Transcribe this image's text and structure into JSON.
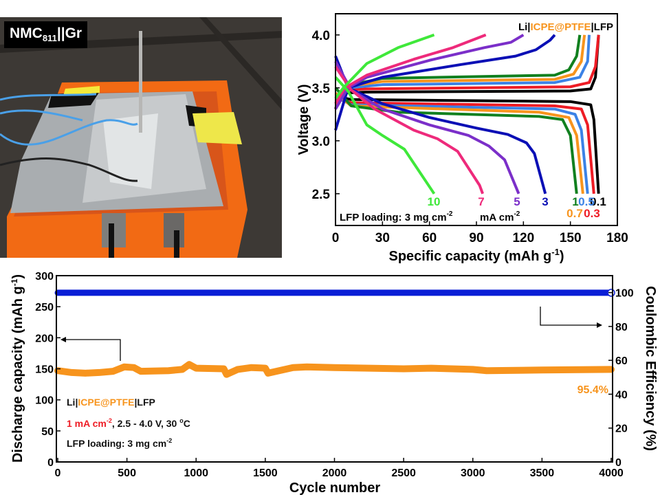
{
  "photo": {
    "label_main": "NMC",
    "label_sub": "811",
    "label_tail": "||Gr"
  },
  "chart_data": [
    {
      "type": "line",
      "xlabel": {
        "text": "Specific capacity (mAh g",
        "sup": "-1",
        "tail": ")"
      },
      "ylabel": "Voltage (V)",
      "xlim": [
        0,
        180
      ],
      "ylim": [
        2.2,
        4.2
      ],
      "xticks": [
        0,
        30,
        60,
        90,
        120,
        150,
        180
      ],
      "yticks": [
        "2.5",
        "3.0",
        "3.5",
        "4.0"
      ],
      "legend_title": {
        "a": "Li|",
        "b": "ICPE@PTFE",
        "c": "|LFP",
        "b_color": "#f7941d"
      },
      "annotation_loading": {
        "text": "LFP loading: 3 mg cm",
        "sup": "-2"
      },
      "annotation_unit": {
        "text": "mA cm",
        "sup": "-2"
      },
      "grid": false,
      "series": [
        {
          "name": "0.1",
          "color": "#000000",
          "charge": [
            [
              0,
              3.3
            ],
            [
              3,
              3.45
            ],
            [
              20,
              3.46
            ],
            [
              150,
              3.47
            ],
            [
              163,
              3.49
            ],
            [
              166,
              3.6
            ],
            [
              168,
              4.0
            ]
          ],
          "discharge": [
            [
              0,
              3.42
            ],
            [
              10,
              3.39
            ],
            [
              150,
              3.37
            ],
            [
              163,
              3.34
            ],
            [
              165,
              3.2
            ],
            [
              168,
              2.5
            ]
          ]
        },
        {
          "name": "0.3",
          "color": "#ee1c25",
          "charge": [
            [
              0,
              3.3
            ],
            [
              5,
              3.48
            ],
            [
              20,
              3.49
            ],
            [
              150,
              3.51
            ],
            [
              162,
              3.55
            ],
            [
              166,
              3.7
            ],
            [
              168,
              4.0
            ]
          ],
          "discharge": [
            [
              0,
              3.4
            ],
            [
              10,
              3.36
            ],
            [
              140,
              3.33
            ],
            [
              157,
              3.3
            ],
            [
              161,
              3.15
            ],
            [
              165,
              2.5
            ]
          ]
        },
        {
          "name": "0.5",
          "color": "#3b82e6",
          "charge": [
            [
              0,
              3.3
            ],
            [
              8,
              3.5
            ],
            [
              30,
              3.53
            ],
            [
              140,
              3.55
            ],
            [
              156,
              3.6
            ],
            [
              161,
              3.75
            ],
            [
              162,
              4.0
            ]
          ],
          "discharge": [
            [
              0,
              3.42
            ],
            [
              10,
              3.34
            ],
            [
              140,
              3.3
            ],
            [
              153,
              3.25
            ],
            [
              157,
              3.1
            ],
            [
              161,
              2.5
            ]
          ]
        },
        {
          "name": "0.7",
          "color": "#f7941d",
          "charge": [
            [
              0,
              3.35
            ],
            [
              10,
              3.52
            ],
            [
              30,
              3.56
            ],
            [
              140,
              3.58
            ],
            [
              152,
              3.63
            ],
            [
              157,
              3.75
            ],
            [
              159,
              4.0
            ]
          ],
          "discharge": [
            [
              0,
              3.45
            ],
            [
              10,
              3.33
            ],
            [
              130,
              3.27
            ],
            [
              149,
              3.22
            ],
            [
              154,
              3.05
            ],
            [
              158,
              2.5
            ]
          ]
        },
        {
          "name": "1",
          "color": "#11801f",
          "charge": [
            [
              0,
              3.4
            ],
            [
              10,
              3.53
            ],
            [
              30,
              3.59
            ],
            [
              140,
              3.62
            ],
            [
              149,
              3.67
            ],
            [
              154,
              3.8
            ],
            [
              156,
              4.0
            ]
          ],
          "discharge": [
            [
              0,
              3.5
            ],
            [
              10,
              3.33
            ],
            [
              40,
              3.27
            ],
            [
              130,
              3.23
            ],
            [
              145,
              3.2
            ],
            [
              150,
              3.05
            ],
            [
              154,
              2.5
            ]
          ]
        },
        {
          "name": "3",
          "color": "#0a0fb5",
          "charge": [
            [
              0,
              3.1
            ],
            [
              8,
              3.5
            ],
            [
              30,
              3.6
            ],
            [
              80,
              3.72
            ],
            [
              115,
              3.8
            ],
            [
              128,
              3.86
            ],
            [
              137,
              3.95
            ],
            [
              140,
              4.0
            ]
          ],
          "discharge": [
            [
              0,
              3.8
            ],
            [
              8,
              3.5
            ],
            [
              30,
              3.35
            ],
            [
              60,
              3.22
            ],
            [
              90,
              3.12
            ],
            [
              110,
              3.06
            ],
            [
              122,
              2.98
            ],
            [
              127,
              2.88
            ],
            [
              134,
              2.5
            ]
          ]
        },
        {
          "name": "5",
          "color": "#7b2fc9",
          "charge": [
            [
              0,
              3.3
            ],
            [
              8,
              3.5
            ],
            [
              20,
              3.6
            ],
            [
              60,
              3.76
            ],
            [
              95,
              3.88
            ],
            [
              112,
              3.93
            ],
            [
              120,
              4.0
            ]
          ],
          "discharge": [
            [
              0,
              3.75
            ],
            [
              10,
              3.48
            ],
            [
              30,
              3.3
            ],
            [
              60,
              3.15
            ],
            [
              85,
              3.05
            ],
            [
              98,
              2.95
            ],
            [
              108,
              2.82
            ],
            [
              117,
              2.5
            ]
          ]
        },
        {
          "name": "7",
          "color": "#ee2a7b",
          "charge": [
            [
              0,
              3.35
            ],
            [
              6,
              3.5
            ],
            [
              20,
              3.62
            ],
            [
              50,
              3.77
            ],
            [
              75,
              3.88
            ],
            [
              96,
              4.0
            ]
          ],
          "discharge": [
            [
              0,
              3.7
            ],
            [
              10,
              3.48
            ],
            [
              25,
              3.3
            ],
            [
              50,
              3.1
            ],
            [
              65,
              3.02
            ],
            [
              78,
              2.9
            ],
            [
              92,
              2.58
            ],
            [
              94,
              2.5
            ]
          ]
        },
        {
          "name": "10",
          "color": "#3fe83a",
          "charge": [
            [
              0,
              3.4
            ],
            [
              5,
              3.5
            ],
            [
              20,
              3.73
            ],
            [
              40,
              3.88
            ],
            [
              63,
              4.0
            ]
          ],
          "discharge": [
            [
              0,
              3.6
            ],
            [
              8,
              3.47
            ],
            [
              20,
              3.15
            ],
            [
              30,
              3.05
            ],
            [
              44,
              2.92
            ],
            [
              63,
              2.5
            ]
          ]
        }
      ]
    },
    {
      "type": "line",
      "xlabel": "Cycle number",
      "ylabel": {
        "text": "Discharge capacity (mAh g",
        "sup": "-1",
        "tail": ")"
      },
      "ylabel_right": "Coulombic Efficiency (%)",
      "xlim": [
        0,
        4000
      ],
      "ylim": [
        0,
        300
      ],
      "ylim_right": [
        0,
        110
      ],
      "xticks": [
        0,
        500,
        1000,
        1500,
        2000,
        2500,
        3000,
        3500,
        4000
      ],
      "yticks": [
        0,
        50,
        100,
        150,
        200,
        250,
        300
      ],
      "yticks_right": [
        0,
        20,
        40,
        60,
        80,
        100
      ],
      "grid": false,
      "annotation_cell": {
        "a": "Li|",
        "b": "ICPE@PTFE",
        "c": "|LFP"
      },
      "annotation_rate": {
        "a": "1 mA cm",
        "a_sup": "-2",
        "b": ", 2.5 - 4.0 V, 30 ",
        "b_sup": "o",
        "c": "C"
      },
      "annotation_loading": {
        "text": "LFP loading: 3 mg cm",
        "sup": "-2"
      },
      "retention_label": "95.4%",
      "series": [
        {
          "axis": "left",
          "color": "#f7941d",
          "x": [
            0,
            100,
            200,
            300,
            400,
            480,
            550,
            600,
            800,
            900,
            950,
            1000,
            1200,
            1220,
            1300,
            1400,
            1500,
            1520,
            1600,
            1700,
            1800,
            2000,
            2500,
            2700,
            3000,
            3100,
            3500,
            4000
          ],
          "y": [
            147,
            144,
            143,
            144,
            146,
            153,
            152,
            146,
            147,
            149,
            157,
            151,
            150,
            141,
            149,
            152,
            151,
            143,
            147,
            152,
            153,
            152,
            150,
            151,
            149,
            147,
            148,
            149
          ]
        },
        {
          "axis": "right",
          "color": "#0a1ed6",
          "x": [
            0,
            500,
            1000,
            1500,
            2000,
            2500,
            3000,
            3500,
            4000
          ],
          "y": [
            99.9,
            99.9,
            99.9,
            99.9,
            99.9,
            99.9,
            99.9,
            99.9,
            99.9
          ]
        }
      ]
    }
  ]
}
